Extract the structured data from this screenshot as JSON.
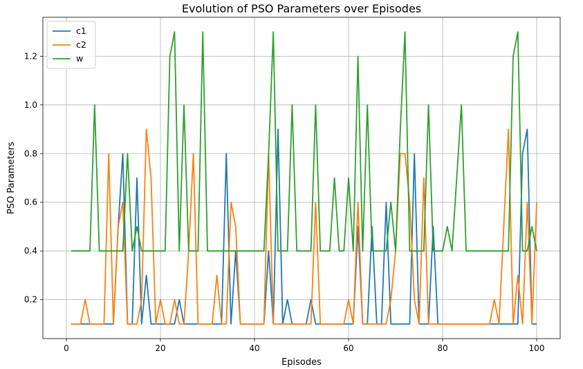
{
  "chart_data": {
    "type": "line",
    "title": "Evolution of PSO Parameters over Episodes",
    "xlabel": "Episodes",
    "ylabel": "PSO Parameters",
    "xlim": [
      -5,
      105
    ],
    "ylim": [
      0.04,
      1.36
    ],
    "x_ticks": [
      0,
      20,
      40,
      60,
      80,
      100
    ],
    "y_ticks": [
      0.2,
      0.4,
      0.6,
      0.8,
      1.0,
      1.2
    ],
    "grid": true,
    "legend_position": "top-left",
    "x": [
      1,
      2,
      3,
      4,
      5,
      6,
      7,
      8,
      9,
      10,
      11,
      12,
      13,
      14,
      15,
      16,
      17,
      18,
      19,
      20,
      21,
      22,
      23,
      24,
      25,
      26,
      27,
      28,
      29,
      30,
      31,
      32,
      33,
      34,
      35,
      36,
      37,
      38,
      39,
      40,
      41,
      42,
      43,
      44,
      45,
      46,
      47,
      48,
      49,
      50,
      51,
      52,
      53,
      54,
      55,
      56,
      57,
      58,
      59,
      60,
      61,
      62,
      63,
      64,
      65,
      66,
      67,
      68,
      69,
      70,
      71,
      72,
      73,
      74,
      75,
      76,
      77,
      78,
      79,
      80,
      81,
      82,
      83,
      84,
      85,
      86,
      87,
      88,
      89,
      90,
      91,
      92,
      93,
      94,
      95,
      96,
      97,
      98,
      99,
      100
    ],
    "series": [
      {
        "name": "c1",
        "color": "#1f77b4",
        "values": [
          0.1,
          0.1,
          0.1,
          0.1,
          0.1,
          0.1,
          0.1,
          0.1,
          0.1,
          0.1,
          0.5,
          0.8,
          0.1,
          0.1,
          0.7,
          0.1,
          0.3,
          0.1,
          0.1,
          0.1,
          0.1,
          0.1,
          0.1,
          0.2,
          0.1,
          0.1,
          0.1,
          0.1,
          0.1,
          0.1,
          0.1,
          0.1,
          0.1,
          0.8,
          0.1,
          0.4,
          0.1,
          0.1,
          0.1,
          0.1,
          0.1,
          0.1,
          0.4,
          0.1,
          0.9,
          0.1,
          0.2,
          0.1,
          0.1,
          0.1,
          0.1,
          0.2,
          0.1,
          0.1,
          0.1,
          0.1,
          0.1,
          0.1,
          0.1,
          0.1,
          0.1,
          0.5,
          0.1,
          0.1,
          0.5,
          0.1,
          0.1,
          0.6,
          0.1,
          0.1,
          0.1,
          0.1,
          0.1,
          0.8,
          0.1,
          0.1,
          0.1,
          0.5,
          0.1,
          0.1,
          0.1,
          0.1,
          0.1,
          0.1,
          0.1,
          0.1,
          0.1,
          0.1,
          0.1,
          0.1,
          0.1,
          0.1,
          0.1,
          0.1,
          0.1,
          0.1,
          0.8,
          0.9,
          0.1,
          0.1
        ]
      },
      {
        "name": "c2",
        "color": "#ff7f0e",
        "values": [
          0.1,
          0.1,
          0.1,
          0.2,
          0.1,
          0.1,
          0.1,
          0.1,
          0.8,
          0.1,
          0.5,
          0.6,
          0.1,
          0.1,
          0.1,
          0.2,
          0.9,
          0.7,
          0.1,
          0.2,
          0.1,
          0.1,
          0.2,
          0.1,
          0.1,
          0.4,
          0.8,
          0.1,
          0.1,
          0.1,
          0.1,
          0.3,
          0.1,
          0.1,
          0.6,
          0.5,
          0.1,
          0.1,
          0.1,
          0.1,
          0.1,
          0.1,
          0.8,
          0.1,
          0.1,
          0.1,
          0.1,
          0.1,
          0.1,
          0.1,
          0.1,
          0.1,
          0.6,
          0.1,
          0.1,
          0.1,
          0.1,
          0.1,
          0.1,
          0.2,
          0.1,
          0.6,
          0.1,
          0.1,
          0.1,
          0.1,
          0.1,
          0.1,
          0.2,
          0.4,
          0.8,
          0.8,
          0.6,
          0.2,
          0.1,
          0.7,
          0.1,
          0.1,
          0.1,
          0.1,
          0.1,
          0.1,
          0.1,
          0.1,
          0.1,
          0.1,
          0.1,
          0.1,
          0.1,
          0.1,
          0.2,
          0.1,
          0.5,
          0.9,
          0.1,
          0.3,
          0.1,
          0.6,
          0.1,
          0.6
        ]
      },
      {
        "name": "w",
        "color": "#2ca02c",
        "values": [
          0.4,
          0.4,
          0.4,
          0.4,
          0.4,
          1.0,
          0.4,
          0.4,
          0.4,
          0.4,
          0.4,
          0.4,
          0.8,
          0.4,
          0.5,
          0.4,
          0.4,
          0.4,
          0.4,
          0.4,
          0.4,
          1.2,
          1.3,
          0.4,
          1.0,
          0.4,
          0.4,
          0.4,
          1.3,
          0.4,
          0.4,
          0.4,
          0.4,
          0.4,
          0.4,
          0.4,
          0.4,
          0.4,
          0.4,
          0.4,
          0.4,
          0.4,
          0.8,
          1.3,
          0.4,
          0.4,
          0.4,
          1.0,
          0.4,
          0.4,
          0.4,
          0.4,
          1.0,
          0.4,
          0.4,
          0.4,
          0.7,
          0.4,
          0.4,
          0.7,
          0.4,
          1.2,
          0.4,
          1.0,
          0.4,
          0.4,
          0.4,
          0.4,
          0.6,
          0.4,
          0.9,
          1.3,
          0.4,
          0.4,
          0.4,
          0.4,
          1.0,
          0.4,
          0.4,
          0.4,
          0.5,
          0.4,
          0.7,
          1.0,
          0.4,
          0.4,
          0.4,
          0.4,
          0.4,
          0.4,
          0.4,
          0.4,
          0.4,
          0.4,
          1.2,
          1.3,
          0.4,
          0.4,
          0.5,
          0.4
        ]
      }
    ]
  }
}
